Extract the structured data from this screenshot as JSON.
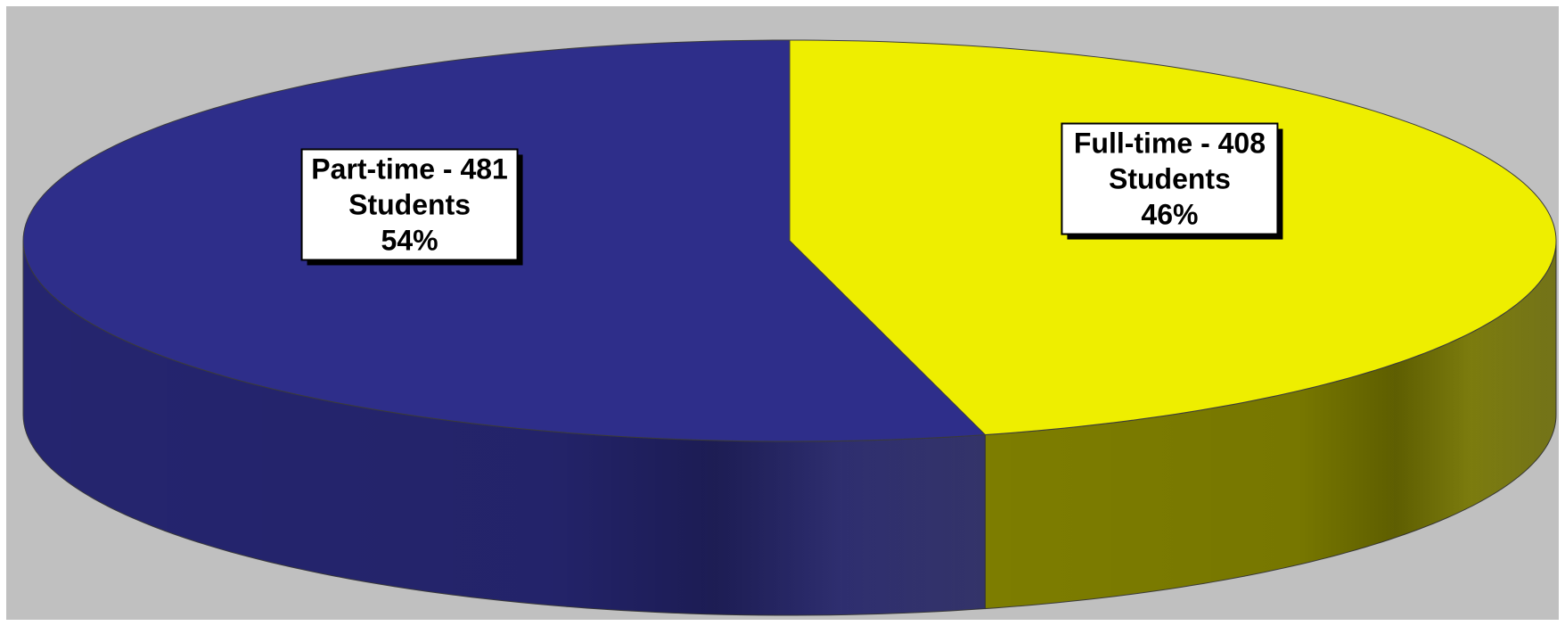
{
  "chart_data": {
    "type": "pie",
    "three_d": true,
    "start_angle_deg": 90,
    "direction": "clockwise",
    "colors": {
      "plot_background": "#c0c0c0",
      "edge": "#3b3b3b"
    },
    "slices": [
      {
        "name": "Full-time",
        "value": 408,
        "percent": 46,
        "color": "#eeee00",
        "side_color": "#7d7d00",
        "label_lines": [
          "Full-time - 408",
          "Students",
          "46%"
        ]
      },
      {
        "name": "Part-time",
        "value": 481,
        "percent": 54,
        "color": "#2e2e8a",
        "side_color": "#25256f",
        "label_lines": [
          "Part-time - 481",
          "Students",
          "54%"
        ]
      }
    ]
  }
}
